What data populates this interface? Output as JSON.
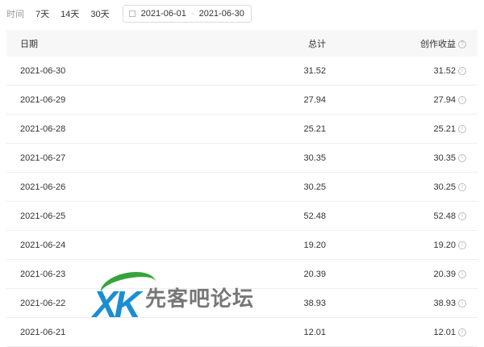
{
  "filter": {
    "label": "时间",
    "options": [
      "7天",
      "14天",
      "30天"
    ],
    "start": "2021-06-01",
    "end": "2021-06-30",
    "separator": "-"
  },
  "table": {
    "headers": [
      "日期",
      "总计",
      "创作收益"
    ],
    "rows": [
      [
        "2021-06-30",
        "31.52",
        "31.52"
      ],
      [
        "2021-06-29",
        "27.94",
        "27.94"
      ],
      [
        "2021-06-28",
        "25.21",
        "25.21"
      ],
      [
        "2021-06-27",
        "30.35",
        "30.35"
      ],
      [
        "2021-06-26",
        "30.25",
        "30.25"
      ],
      [
        "2021-06-25",
        "52.48",
        "52.48"
      ],
      [
        "2021-06-24",
        "19.20",
        "19.20"
      ],
      [
        "2021-06-23",
        "20.39",
        "20.39"
      ],
      [
        "2021-06-22",
        "38.93",
        "38.93"
      ],
      [
        "2021-06-21",
        "12.01",
        "12.01"
      ]
    ]
  },
  "watermark": {
    "logo": "XK",
    "text": "先客吧论坛"
  }
}
